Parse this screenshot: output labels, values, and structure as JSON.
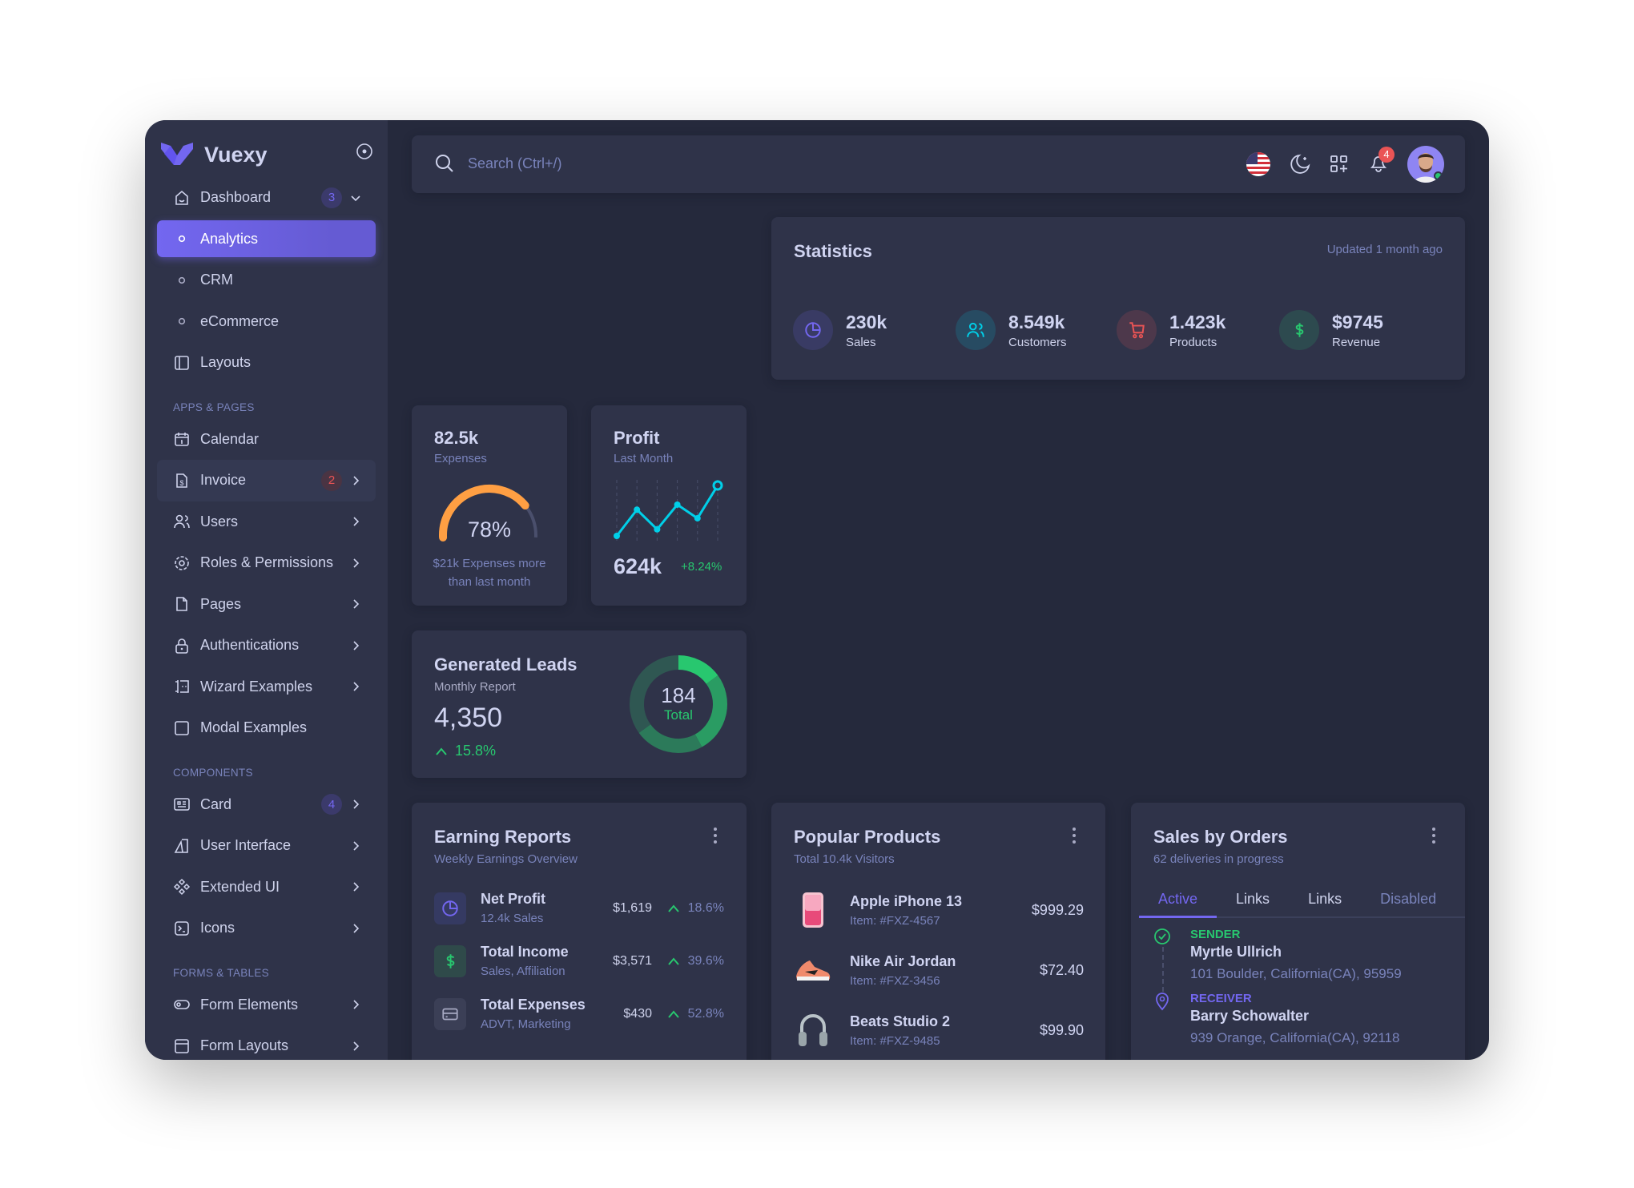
{
  "brand": {
    "name": "Vuexy",
    "accent": "#7367f0"
  },
  "sidebar": {
    "items": [
      {
        "type": "item",
        "label": "Dashboard",
        "icon": "home",
        "badge": "3",
        "badge_color": "#7367f0",
        "chevron": "down"
      },
      {
        "type": "sub",
        "label": "Analytics",
        "active": true
      },
      {
        "type": "sub",
        "label": "CRM"
      },
      {
        "type": "sub",
        "label": "eCommerce"
      },
      {
        "type": "item",
        "label": "Layouts",
        "icon": "layout"
      },
      {
        "type": "section",
        "label": "APPS & PAGES"
      },
      {
        "type": "item",
        "label": "Calendar",
        "icon": "calendar"
      },
      {
        "type": "item",
        "label": "Invoice",
        "icon": "invoice",
        "badge": "2",
        "badge_color": "#ea5455",
        "chevron": "right",
        "hover": true
      },
      {
        "type": "item",
        "label": "Users",
        "icon": "users",
        "chevron": "right"
      },
      {
        "type": "item",
        "label": "Roles & Permissions",
        "icon": "settings",
        "chevron": "right"
      },
      {
        "type": "item",
        "label": "Pages",
        "icon": "file",
        "chevron": "right"
      },
      {
        "type": "item",
        "label": "Authentications",
        "icon": "lock",
        "chevron": "right"
      },
      {
        "type": "item",
        "label": "Wizard Examples",
        "icon": "wizard",
        "chevron": "right"
      },
      {
        "type": "item",
        "label": "Modal Examples",
        "icon": "square"
      },
      {
        "type": "section",
        "label": "COMPONENTS"
      },
      {
        "type": "item",
        "label": "Card",
        "icon": "id-card",
        "badge": "4",
        "badge_color": "#7367f0",
        "chevron": "right"
      },
      {
        "type": "item",
        "label": "User Interface",
        "icon": "ui",
        "chevron": "right"
      },
      {
        "type": "item",
        "label": "Extended UI",
        "icon": "components",
        "chevron": "right"
      },
      {
        "type": "item",
        "label": "Icons",
        "icon": "terminal",
        "chevron": "right"
      },
      {
        "type": "section",
        "label": "FORMS & TABLES"
      },
      {
        "type": "item",
        "label": "Form Elements",
        "icon": "toggle",
        "chevron": "right"
      },
      {
        "type": "item",
        "label": "Form Layouts",
        "icon": "layout-navbar",
        "chevron": "right"
      }
    ]
  },
  "navbar": {
    "search_placeholder": "Search (Ctrl+/)",
    "notifications": "4",
    "icons": [
      "us-flag-icon",
      "moon-icon",
      "apps-icon",
      "bell-icon",
      "avatar"
    ]
  },
  "statistics": {
    "title": "Statistics",
    "updated": "Updated 1 month ago",
    "items": [
      {
        "value": "230k",
        "label": "Sales",
        "icon": "chart-pie",
        "color": "#7367f0"
      },
      {
        "value": "8.549k",
        "label": "Customers",
        "icon": "users",
        "color": "#00cfe8"
      },
      {
        "value": "1.423k",
        "label": "Products",
        "icon": "cart",
        "color": "#ea5455"
      },
      {
        "value": "$9745",
        "label": "Revenue",
        "icon": "dollar",
        "color": "#28c76f"
      }
    ]
  },
  "expenses": {
    "value": "82.5k",
    "label": "Expenses",
    "percent": 78,
    "percent_label": "78%",
    "note_line1": "$21k Expenses more",
    "note_line2": "than last month",
    "color": "#ff9f43"
  },
  "profit": {
    "title": "Profit",
    "subtitle": "Last Month",
    "value": "624k",
    "change": "+8.24%",
    "color": "#00cfe8",
    "chart_points": [
      0,
      52,
      13,
      62,
      35,
      100
    ]
  },
  "leads": {
    "title": "Generated Leads",
    "subtitle": "Monthly Report",
    "value": "4,350",
    "change": "15.8%",
    "total": "184",
    "total_label": "Total",
    "segments": [
      {
        "share": 15,
        "color": "#28c76f"
      },
      {
        "share": 27,
        "color": "#2a9c63"
      },
      {
        "share": 23,
        "color": "#2c7a5a"
      },
      {
        "share": 35,
        "color": "#2f5752"
      }
    ]
  },
  "earning": {
    "title": "Earning Reports",
    "subtitle": "Weekly Earnings Overview",
    "rows": [
      {
        "title": "Net Profit",
        "sub": "12.4k Sales",
        "amount": "$1,619",
        "change": "18.6%",
        "icon": "chart-pie",
        "color": "#7367f0",
        "bg": "#353a62"
      },
      {
        "title": "Total Income",
        "sub": "Sales, Affiliation",
        "amount": "$3,571",
        "change": "39.6%",
        "icon": "dollar",
        "color": "#28c76f",
        "bg": "#2f4a4a"
      },
      {
        "title": "Total Expenses",
        "sub": "ADVT, Marketing",
        "amount": "$430",
        "change": "52.8%",
        "icon": "credit-card",
        "color": "#a8aac4",
        "bg": "#3b3f56"
      }
    ]
  },
  "popular": {
    "title": "Popular Products",
    "subtitle": "Total 10.4k Visitors",
    "rows": [
      {
        "name": "Apple iPhone 13",
        "item": "Item: #FXZ-4567",
        "price": "$999.29",
        "icon": "iphone"
      },
      {
        "name": "Nike Air Jordan",
        "item": "Item: #FXZ-3456",
        "price": "$72.40",
        "icon": "shoe"
      },
      {
        "name": "Beats Studio 2",
        "item": "Item: #FXZ-9485",
        "price": "$99.90",
        "icon": "headphones"
      }
    ]
  },
  "orders": {
    "title": "Sales by Orders",
    "subtitle": "62 deliveries in progress",
    "tabs": [
      "Active",
      "Links",
      "Links",
      "Disabled"
    ],
    "sender": {
      "label": "SENDER",
      "name": "Myrtle Ullrich",
      "address": "101 Boulder, California(CA), 95959"
    },
    "receiver": {
      "label": "RECEIVER",
      "name": "Barry Schowalter",
      "address": "939 Orange, California(CA), 92118"
    }
  }
}
